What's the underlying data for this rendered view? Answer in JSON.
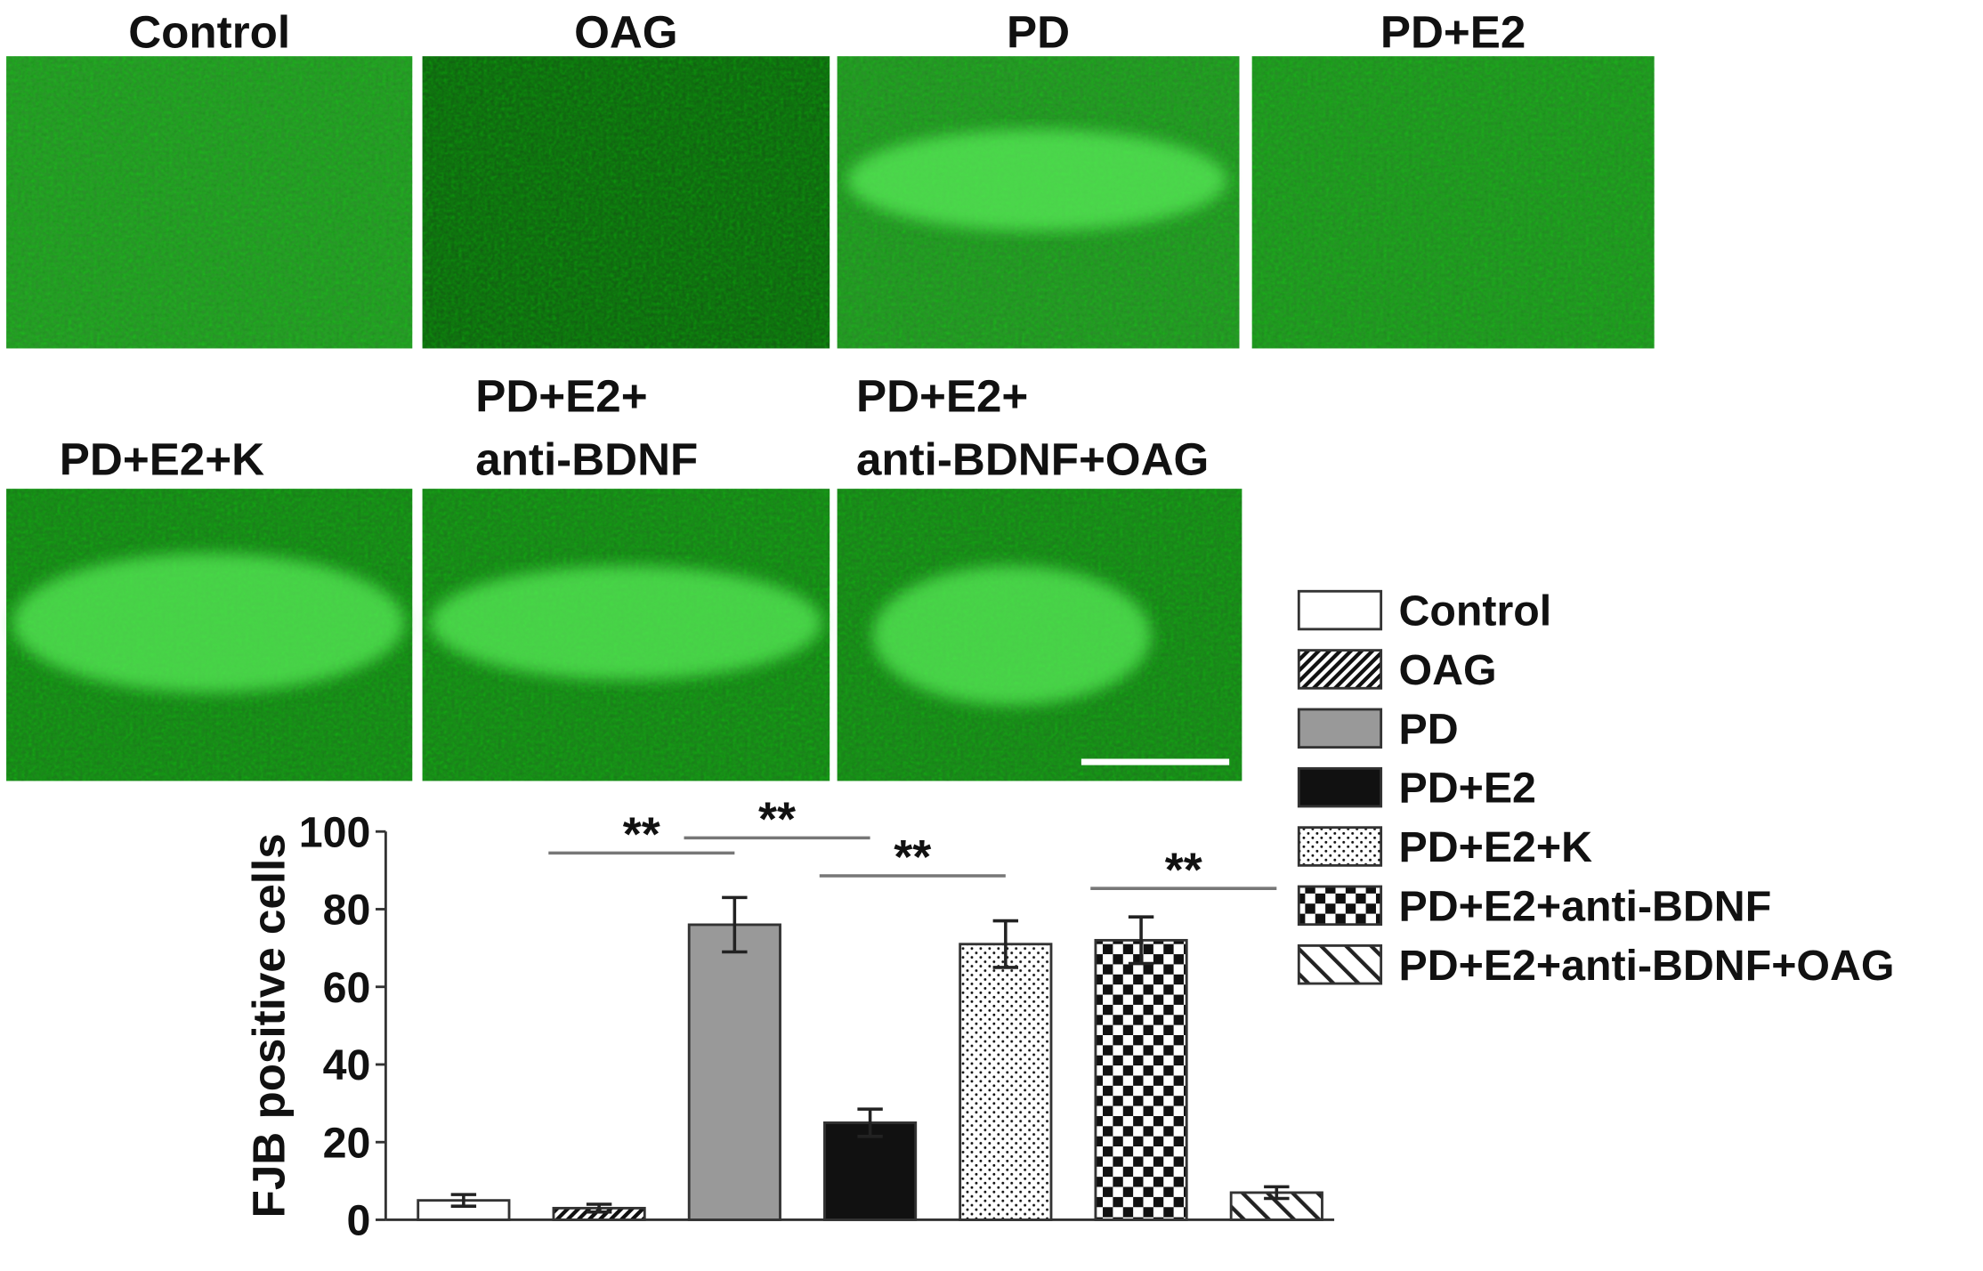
{
  "images": [
    {
      "lines": [
        "Control"
      ]
    },
    {
      "lines": [
        "OAG"
      ]
    },
    {
      "lines": [
        "PD"
      ]
    },
    {
      "lines": [
        "PD+E2"
      ]
    },
    {
      "lines": [
        "PD+E2+K"
      ]
    },
    {
      "lines": [
        "PD+E2+",
        "anti-BDNF"
      ]
    },
    {
      "lines": [
        "PD+E2+",
        "anti-BDNF+OAG"
      ]
    }
  ],
  "chart_data": {
    "type": "bar",
    "y_label": "FJB positive cells",
    "categories": [
      "Control",
      "OAG",
      "PD",
      "PD+E2",
      "PD+E2+K",
      "PD+E2+anti-BDNF",
      "PD+E2+anti-BDNF+OAG"
    ],
    "values": [
      5,
      3,
      76,
      25,
      71,
      72,
      7
    ],
    "errors": [
      1.5,
      1,
      7,
      3.5,
      6,
      6,
      1.5
    ],
    "fills": [
      "#ffffff",
      "hatch",
      "#999999",
      "#111111",
      "dots",
      "checker",
      "wide-hatch"
    ],
    "ylim": [
      0,
      100
    ],
    "yticks": [
      0,
      20,
      40,
      60,
      80,
      100
    ],
    "annotations": [
      {
        "text": "**",
        "from": 1,
        "to": 2
      },
      {
        "text": "**",
        "from": 2,
        "to": 3
      },
      {
        "text": "**",
        "from": 3,
        "to": 4
      },
      {
        "text": "**",
        "from": 5,
        "to": 6
      }
    ],
    "legend": "right"
  }
}
